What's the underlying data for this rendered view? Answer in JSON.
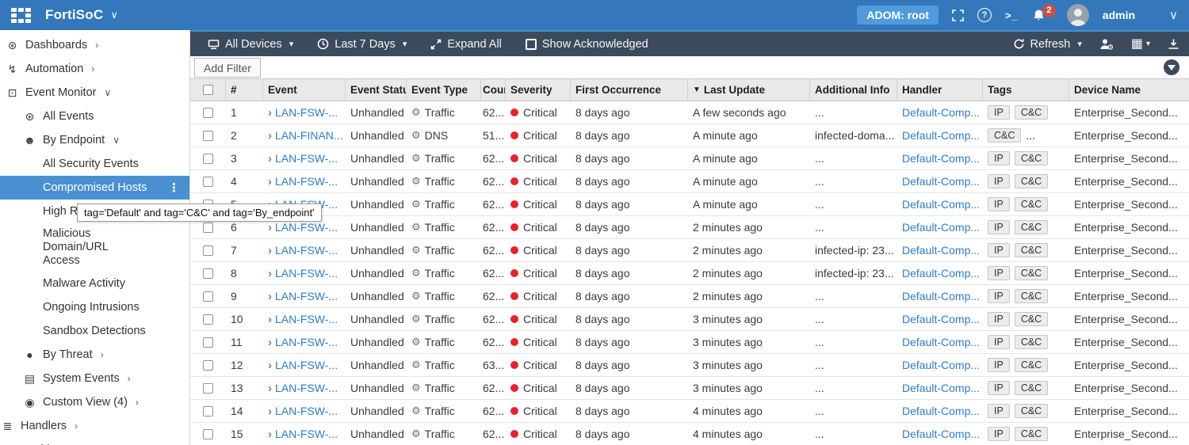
{
  "header": {
    "app_title": "FortiSoC",
    "adom_label": "ADOM: root",
    "cli_label": ">_",
    "help_label": "?",
    "notification_count": "2",
    "username": "admin"
  },
  "colors": {
    "topbar": "#3478bb",
    "adom": "#4f9bdc",
    "toolbar": "#3c4a5d",
    "accent": "#4a90d1",
    "link": "#2e7cc0",
    "critical": "#e3242b",
    "badge-bg": "#ececec",
    "badge-border": "#c6c6c6",
    "header-bg": "#e9e9e9",
    "notif": "#c9504e"
  },
  "icons": {
    "dashboards-icon": "⊛",
    "automation-icon": "↯",
    "event-monitor-icon": "⊡",
    "all-events-icon": "⊛",
    "by-endpoint-icon": "☻",
    "by-threat-icon": "●",
    "system-events-icon": "▤",
    "custom-view-icon": "◉",
    "handlers-icon": "≣",
    "incidents-icon": "▣"
  },
  "sidebar": {
    "items": [
      {
        "id": "dashboards",
        "label": "Dashboards",
        "icon": "dashboards-icon",
        "level": 1,
        "chevron": "right"
      },
      {
        "id": "automation",
        "label": "Automation",
        "icon": "automation-icon",
        "level": 1,
        "chevron": "right"
      },
      {
        "id": "event-monitor",
        "label": "Event Monitor",
        "icon": "event-monitor-icon",
        "level": 1,
        "chevron": "down"
      },
      {
        "id": "all-events",
        "label": "All Events",
        "icon": "all-events-icon",
        "level": 2
      },
      {
        "id": "by-endpoint",
        "label": "By Endpoint",
        "icon": "by-endpoint-icon",
        "level": 2,
        "chevron": "down"
      },
      {
        "id": "all-security-events",
        "label": "All Security Events",
        "level": 3
      },
      {
        "id": "compromised-hosts",
        "label": "Compromised Hosts",
        "level": 3,
        "selected": true,
        "kebab": true
      },
      {
        "id": "high-risk",
        "label": "High Risk",
        "level": 3
      },
      {
        "id": "malicious-domain-url-access",
        "label": "Malicious Domain/URL Access",
        "level": 3,
        "wrap": true
      },
      {
        "id": "malware-activity",
        "label": "Malware Activity",
        "level": 3
      },
      {
        "id": "ongoing-intrusions",
        "label": "Ongoing Intrusions",
        "level": 3
      },
      {
        "id": "sandbox-detections",
        "label": "Sandbox Detections",
        "level": 3
      },
      {
        "id": "by-threat",
        "label": "By Threat",
        "icon": "by-threat-icon",
        "level": 2,
        "chevron": "right"
      },
      {
        "id": "system-events",
        "label": "System Events",
        "icon": "system-events-icon",
        "level": 2,
        "chevron": "right"
      },
      {
        "id": "custom-view",
        "label": "Custom View (4)",
        "icon": "custom-view-icon",
        "level": 2,
        "chevron": "right"
      },
      {
        "id": "handlers",
        "label": "Handlers",
        "icon": "handlers-icon",
        "level": 1,
        "chevron": "right",
        "tight": true
      },
      {
        "id": "incidents",
        "label": "Incidents",
        "icon": "incidents-icon",
        "level": 1
      }
    ]
  },
  "toolbar": {
    "devices_label": "All Devices",
    "time_range_label": "Last 7 Days",
    "expand_all_label": "Expand All",
    "show_acknowledged_label": "Show Acknowledged",
    "refresh_label": "Refresh"
  },
  "filter_bar": {
    "add_filter_label": "Add Filter"
  },
  "tooltip": {
    "text": "tag='Default' and tag='C&C' and tag='By_endpoint'"
  },
  "table": {
    "columns": [
      "",
      "#",
      "Event",
      "Event Status",
      "Event Type",
      "Count",
      "Severity",
      "First Occurrence",
      "Last Update",
      "Additional Info",
      "Handler",
      "Tags",
      "Device Name"
    ],
    "sort_column": "Last Update",
    "rows": [
      {
        "num": "1",
        "event": "LAN-FSW-...",
        "status": "Unhandled",
        "type": "Traffic",
        "count": "62...",
        "severity": "Critical",
        "first": "8 days ago",
        "last": "A few seconds ago",
        "info": "...",
        "handler": "Default-Comp...",
        "tags": [
          "IP",
          "C&C"
        ],
        "tags_overflow": "",
        "device": "Enterprise_Second..."
      },
      {
        "num": "2",
        "event": "LAN-FINAN...",
        "status": "Unhandled",
        "type": "DNS",
        "count": "51...",
        "severity": "Critical",
        "first": "8 days ago",
        "last": "A minute ago",
        "info": "infected-doma...",
        "handler": "Default-Comp...",
        "tags": [
          "C&C"
        ],
        "tags_overflow": "...",
        "device": "Enterprise_Second..."
      },
      {
        "num": "3",
        "event": "LAN-FSW-...",
        "status": "Unhandled",
        "type": "Traffic",
        "count": "62...",
        "severity": "Critical",
        "first": "8 days ago",
        "last": "A minute ago",
        "info": "...",
        "handler": "Default-Comp...",
        "tags": [
          "IP",
          "C&C"
        ],
        "tags_overflow": "",
        "device": "Enterprise_Second..."
      },
      {
        "num": "4",
        "event": "LAN-FSW-...",
        "status": "Unhandled",
        "type": "Traffic",
        "count": "62...",
        "severity": "Critical",
        "first": "8 days ago",
        "last": "A minute ago",
        "info": "...",
        "handler": "Default-Comp...",
        "tags": [
          "IP",
          "C&C"
        ],
        "tags_overflow": "",
        "device": "Enterprise_Second..."
      },
      {
        "num": "5",
        "event": "LAN-FSW-...",
        "status": "Unhandled",
        "type": "Traffic",
        "count": "62...",
        "severity": "Critical",
        "first": "8 days ago",
        "last": "A minute ago",
        "info": "...",
        "handler": "Default-Comp...",
        "tags": [
          "IP",
          "C&C"
        ],
        "tags_overflow": "",
        "device": "Enterprise_Second..."
      },
      {
        "num": "6",
        "event": "LAN-FSW-...",
        "status": "Unhandled",
        "type": "Traffic",
        "count": "62...",
        "severity": "Critical",
        "first": "8 days ago",
        "last": "2 minutes ago",
        "info": "...",
        "handler": "Default-Comp...",
        "tags": [
          "IP",
          "C&C"
        ],
        "tags_overflow": "",
        "device": "Enterprise_Second..."
      },
      {
        "num": "7",
        "event": "LAN-FSW-...",
        "status": "Unhandled",
        "type": "Traffic",
        "count": "62...",
        "severity": "Critical",
        "first": "8 days ago",
        "last": "2 minutes ago",
        "info": "infected-ip: 23...",
        "handler": "Default-Comp...",
        "tags": [
          "IP",
          "C&C"
        ],
        "tags_overflow": "",
        "device": "Enterprise_Second..."
      },
      {
        "num": "8",
        "event": "LAN-FSW-...",
        "status": "Unhandled",
        "type": "Traffic",
        "count": "62...",
        "severity": "Critical",
        "first": "8 days ago",
        "last": "2 minutes ago",
        "info": "infected-ip: 23...",
        "handler": "Default-Comp...",
        "tags": [
          "IP",
          "C&C"
        ],
        "tags_overflow": "",
        "device": "Enterprise_Second..."
      },
      {
        "num": "9",
        "event": "LAN-FSW-...",
        "status": "Unhandled",
        "type": "Traffic",
        "count": "62...",
        "severity": "Critical",
        "first": "8 days ago",
        "last": "2 minutes ago",
        "info": "...",
        "handler": "Default-Comp...",
        "tags": [
          "IP",
          "C&C"
        ],
        "tags_overflow": "",
        "device": "Enterprise_Second..."
      },
      {
        "num": "10",
        "event": "LAN-FSW-...",
        "status": "Unhandled",
        "type": "Traffic",
        "count": "62...",
        "severity": "Critical",
        "first": "8 days ago",
        "last": "3 minutes ago",
        "info": "...",
        "handler": "Default-Comp...",
        "tags": [
          "IP",
          "C&C"
        ],
        "tags_overflow": "",
        "device": "Enterprise_Second..."
      },
      {
        "num": "11",
        "event": "LAN-FSW-...",
        "status": "Unhandled",
        "type": "Traffic",
        "count": "62...",
        "severity": "Critical",
        "first": "8 days ago",
        "last": "3 minutes ago",
        "info": "...",
        "handler": "Default-Comp...",
        "tags": [
          "IP",
          "C&C"
        ],
        "tags_overflow": "",
        "device": "Enterprise_Second..."
      },
      {
        "num": "12",
        "event": "LAN-FSW-...",
        "status": "Unhandled",
        "type": "Traffic",
        "count": "63...",
        "severity": "Critical",
        "first": "8 days ago",
        "last": "3 minutes ago",
        "info": "...",
        "handler": "Default-Comp...",
        "tags": [
          "IP",
          "C&C"
        ],
        "tags_overflow": "",
        "device": "Enterprise_Second..."
      },
      {
        "num": "13",
        "event": "LAN-FSW-...",
        "status": "Unhandled",
        "type": "Traffic",
        "count": "62...",
        "severity": "Critical",
        "first": "8 days ago",
        "last": "3 minutes ago",
        "info": "...",
        "handler": "Default-Comp...",
        "tags": [
          "IP",
          "C&C"
        ],
        "tags_overflow": "",
        "device": "Enterprise_Second..."
      },
      {
        "num": "14",
        "event": "LAN-FSW-...",
        "status": "Unhandled",
        "type": "Traffic",
        "count": "62...",
        "severity": "Critical",
        "first": "8 days ago",
        "last": "4 minutes ago",
        "info": "...",
        "handler": "Default-Comp...",
        "tags": [
          "IP",
          "C&C"
        ],
        "tags_overflow": "",
        "device": "Enterprise_Second..."
      },
      {
        "num": "15",
        "event": "LAN-FSW-...",
        "status": "Unhandled",
        "type": "Traffic",
        "count": "62...",
        "severity": "Critical",
        "first": "8 days ago",
        "last": "4 minutes ago",
        "info": "...",
        "handler": "Default-Comp...",
        "tags": [
          "IP",
          "C&C"
        ],
        "tags_overflow": "",
        "device": "Enterprise_Second..."
      }
    ]
  }
}
